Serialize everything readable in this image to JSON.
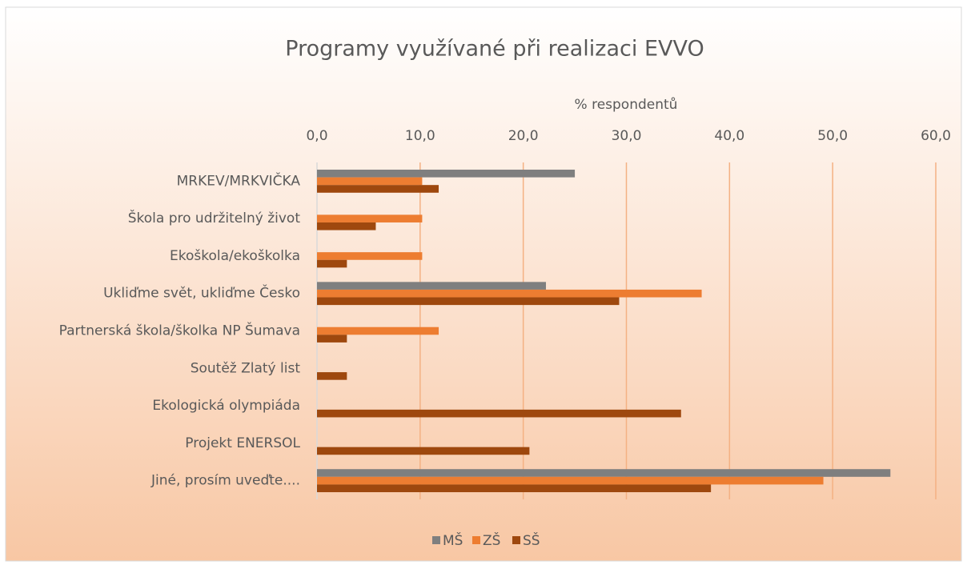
{
  "chart_data": {
    "type": "barh",
    "title": "Programy využívané při realizaci EVVO",
    "xlabel": "% respondentů",
    "categories": [
      "MRKEV/MRKVIČKA",
      "Škola pro udržitelný život",
      "Ekoškola/ekoškolka",
      "Ukliďme svět, ukliďme Česko",
      "Partnerská škola/školka NP Šumava",
      "Soutěž Zlatý list",
      "Ekologická olympiáda",
      "Projekt ENERSOL",
      "Jiné, prosím uveďte...."
    ],
    "series": [
      {
        "name": "MŠ",
        "color": "#7f7f7f",
        "values": [
          25.0,
          null,
          null,
          22.2,
          null,
          null,
          null,
          null,
          55.6
        ]
      },
      {
        "name": "ZŠ",
        "color": "#ed7d31",
        "values": [
          10.2,
          10.2,
          10.2,
          37.3,
          11.8,
          null,
          null,
          null,
          49.1
        ]
      },
      {
        "name": "SŠ",
        "color": "#9e480e",
        "values": [
          11.8,
          5.7,
          2.9,
          29.3,
          2.9,
          2.9,
          35.3,
          20.6,
          38.2
        ]
      }
    ],
    "xlim": [
      0,
      60
    ],
    "xticks": [
      {
        "value": 0,
        "label": "0,0"
      },
      {
        "value": 10,
        "label": "10,0"
      },
      {
        "value": 20,
        "label": "20,0"
      },
      {
        "value": 30,
        "label": "30,0"
      },
      {
        "value": 40,
        "label": "40,0"
      },
      {
        "value": 50,
        "label": "50,0"
      },
      {
        "value": 60,
        "label": "60,0"
      }
    ],
    "grid": true,
    "legend": "bottom"
  }
}
